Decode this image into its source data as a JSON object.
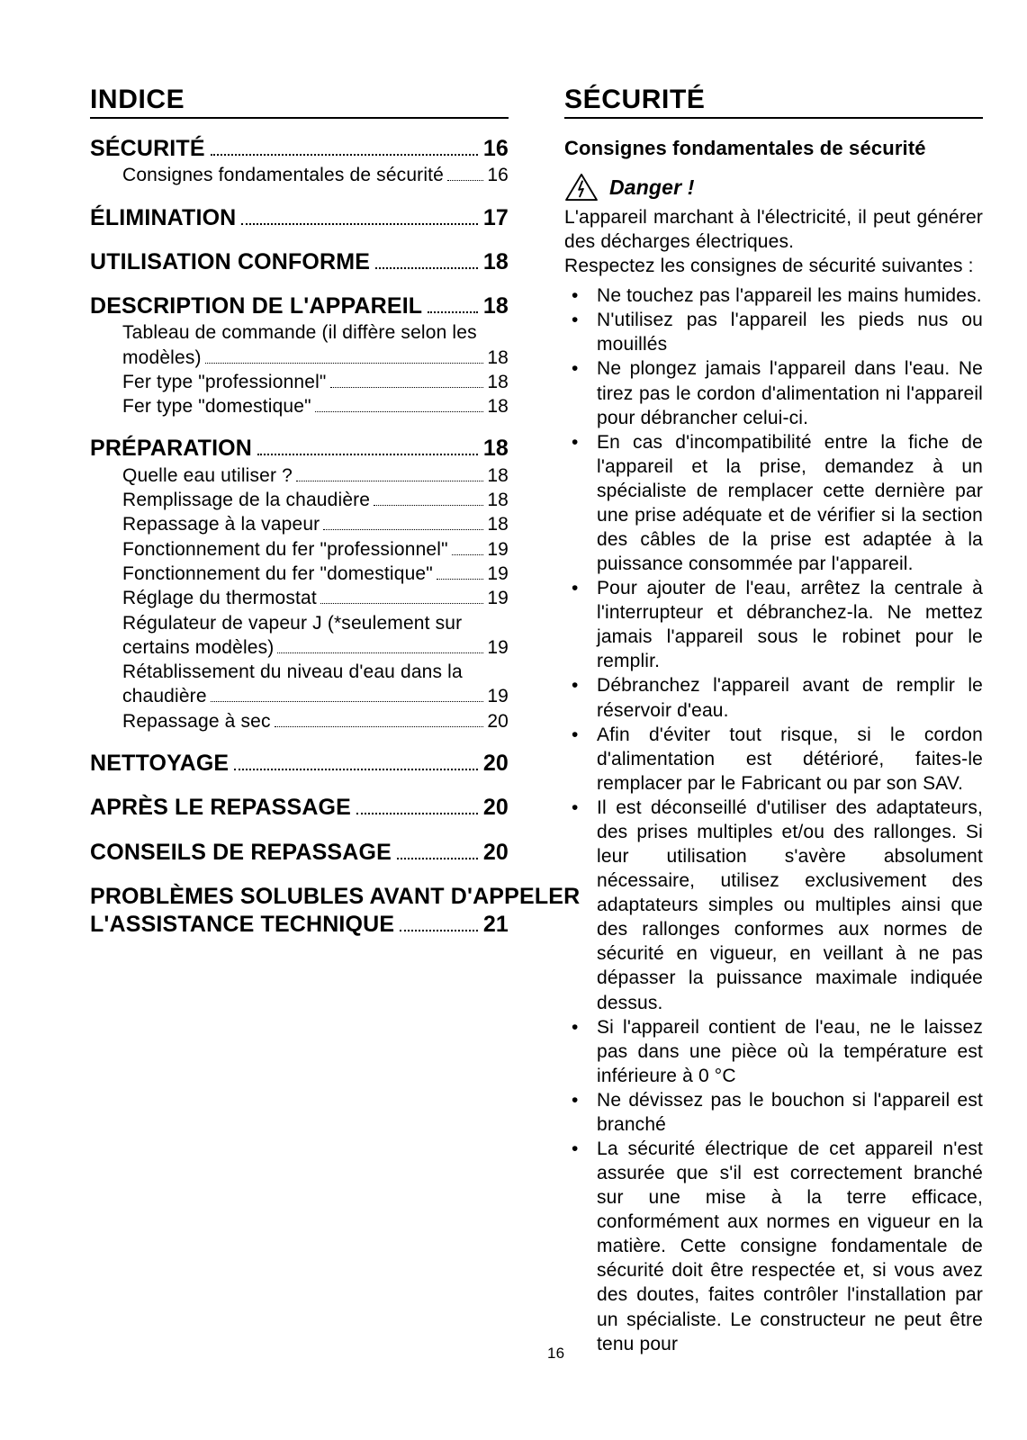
{
  "page_number": "16",
  "left": {
    "title": "INDICE",
    "toc": [
      {
        "label": "SÉCURITÉ",
        "page": "16",
        "subs": [
          {
            "label": "Consignes fondamentales de sécurité",
            "page": "16"
          }
        ]
      },
      {
        "label": "ÉLIMINATION",
        "page": "17",
        "subs": []
      },
      {
        "label": "UTILISATION CONFORME",
        "page": "18",
        "subs": []
      },
      {
        "label": "DESCRIPTION DE L'APPAREIL",
        "page": "18",
        "subs": [
          {
            "label_lines": [
              "Tableau de commande (il diffère selon les",
              "modèles)"
            ],
            "page": "18"
          },
          {
            "label": "Fer type \"professionnel\"",
            "page": "18"
          },
          {
            "label": "Fer type \"domestique\"",
            "page": "18"
          }
        ]
      },
      {
        "label": "PRÉPARATION",
        "page": "18",
        "subs": [
          {
            "label": "Quelle eau utiliser ?",
            "page": "18"
          },
          {
            "label": "Remplissage de la chaudière",
            "page": "18"
          },
          {
            "label": "Repassage à la vapeur",
            "page": "18"
          },
          {
            "label": "Fonctionnement du fer \"professionnel\"",
            "page": "19"
          },
          {
            "label": "Fonctionnement du fer \"domestique\"",
            "page": "19"
          },
          {
            "label": "Réglage du thermostat",
            "page": "19"
          },
          {
            "label_lines": [
              "Régulateur de vapeur J (*seulement sur",
              "certains modèles)"
            ],
            "page": "19"
          },
          {
            "label_lines": [
              "Rétablissement du niveau d'eau dans la",
              "chaudière"
            ],
            "page": "19"
          },
          {
            "label": "Repassage à sec",
            "page": "20"
          }
        ]
      },
      {
        "label": "NETTOYAGE",
        "page": "20",
        "subs": []
      },
      {
        "label": "APRÈS LE REPASSAGE",
        "page": "20",
        "subs": []
      },
      {
        "label": "CONSEILS DE REPASSAGE",
        "page": "20",
        "subs": []
      },
      {
        "label_lines": [
          "PROBLÈMES SOLUBLES AVANT D'APPELER",
          "L'ASSISTANCE TECHNIQUE"
        ],
        "page": "21",
        "subs": []
      }
    ]
  },
  "right": {
    "title": "SÉCURITÉ",
    "subtitle": "Consignes fondamentales de sécurité",
    "danger_label": "Danger !",
    "intro_lines": [
      "L'appareil marchant à l'électricité, il peut générer des décharges électriques.",
      "Respectez les consignes de sécurité suivantes :"
    ],
    "bullets": [
      "Ne touchez pas l'appareil les mains humides.",
      "N'utilisez pas l'appareil les pieds nus ou mouillés",
      "Ne plongez jamais l'appareil dans l'eau. Ne tirez pas le cordon d'alimentation ni l'appareil pour débrancher celui-ci.",
      "En cas d'incompatibilité entre la fiche de l'appareil et la prise, demandez à un spécialiste de remplacer cette dernière par une prise adéquate et de vérifier si la section des câbles de la prise est adaptée à la puissance consommée par l'appareil.",
      "Pour ajouter de l'eau, arrêtez la centrale à l'interrupteur et débranchez-la. Ne mettez jamais l'appareil sous le robinet pour le remplir.",
      "Débranchez l'appareil avant de remplir le réservoir d'eau.",
      "Afin d'éviter tout risque, si le cordon d'alimentation est détérioré, faites-le remplacer par le Fabricant ou par son SAV.",
      "Il est déconseillé d'utiliser des adaptateurs, des prises multiples et/ou des rallonges. Si leur utilisation s'avère absolument nécessaire, utilisez exclusivement des adaptateurs simples ou multiples ainsi que des rallonges conformes aux normes de sécurité en vigueur, en veillant à ne pas dépasser la puissance maximale indiquée dessus.",
      "Si l'appareil contient de l'eau, ne le laissez pas dans une pièce où la température est inférieure à 0 °C",
      "Ne dévissez pas le bouchon si l'appareil est branché",
      "La sécurité électrique de cet appareil n'est assurée que s'il est correctement branché sur une mise à la terre efficace, conformément aux normes en vigueur en la matière. Cette consigne fondamentale de sécurité doit être respectée et, si vous avez des doutes, faites contrôler l'installation par un spécialiste. Le constructeur ne peut être tenu pour"
    ]
  }
}
